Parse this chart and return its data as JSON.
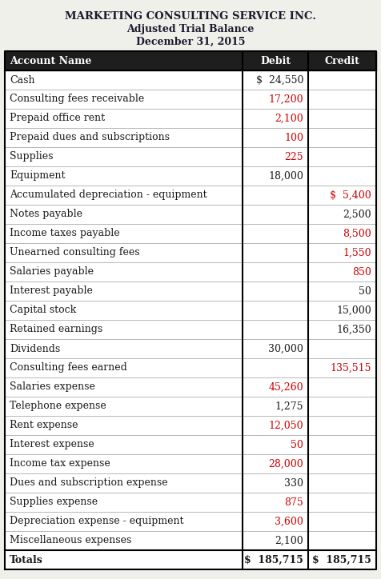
{
  "title1": "MARKETING CONSULTING SERVICE INC.",
  "title2": "Adjusted Trial Balance",
  "title3": "December 31, 2015",
  "col_headers": [
    "Account Name",
    "Debit",
    "Credit"
  ],
  "rows": [
    {
      "name": "Cash",
      "debit": "$  24,550",
      "credit": "",
      "debit_red": false,
      "credit_red": false
    },
    {
      "name": "Consulting fees receivable",
      "debit": "17,200",
      "credit": "",
      "debit_red": true,
      "credit_red": false
    },
    {
      "name": "Prepaid office rent",
      "debit": "2,100",
      "credit": "",
      "debit_red": true,
      "credit_red": false
    },
    {
      "name": "Prepaid dues and subscriptions",
      "debit": "100",
      "credit": "",
      "debit_red": true,
      "credit_red": false
    },
    {
      "name": "Supplies",
      "debit": "225",
      "credit": "",
      "debit_red": true,
      "credit_red": false
    },
    {
      "name": "Equipment",
      "debit": "18,000",
      "credit": "",
      "debit_red": false,
      "credit_red": false
    },
    {
      "name": "Accumulated depreciation - equipment",
      "debit": "",
      "credit": "$  5,400",
      "debit_red": false,
      "credit_red": true
    },
    {
      "name": "Notes payable",
      "debit": "",
      "credit": "2,500",
      "debit_red": false,
      "credit_red": false
    },
    {
      "name": "Income taxes payable",
      "debit": "",
      "credit": "8,500",
      "debit_red": false,
      "credit_red": true
    },
    {
      "name": "Unearned consulting fees",
      "debit": "",
      "credit": "1,550",
      "debit_red": false,
      "credit_red": true
    },
    {
      "name": "Salaries payable",
      "debit": "",
      "credit": "850",
      "debit_red": false,
      "credit_red": true
    },
    {
      "name": "Interest payable",
      "debit": "",
      "credit": "50",
      "debit_red": false,
      "credit_red": false
    },
    {
      "name": "Capital stock",
      "debit": "",
      "credit": "15,000",
      "debit_red": false,
      "credit_red": false
    },
    {
      "name": "Retained earnings",
      "debit": "",
      "credit": "16,350",
      "debit_red": false,
      "credit_red": false
    },
    {
      "name": "Dividends",
      "debit": "30,000",
      "credit": "",
      "debit_red": false,
      "credit_red": false
    },
    {
      "name": "Consulting fees earned",
      "debit": "",
      "credit": "135,515",
      "debit_red": false,
      "credit_red": true
    },
    {
      "name": "Salaries expense",
      "debit": "45,260",
      "credit": "",
      "debit_red": true,
      "credit_red": false
    },
    {
      "name": "Telephone expense",
      "debit": "1,275",
      "credit": "",
      "debit_red": false,
      "credit_red": false
    },
    {
      "name": "Rent expense",
      "debit": "12,050",
      "credit": "",
      "debit_red": true,
      "credit_red": false
    },
    {
      "name": "Interest expense",
      "debit": "50",
      "credit": "",
      "debit_red": true,
      "credit_red": false
    },
    {
      "name": "Income tax expense",
      "debit": "28,000",
      "credit": "",
      "debit_red": true,
      "credit_red": false
    },
    {
      "name": "Dues and subscription expense",
      "debit": "330",
      "credit": "",
      "debit_red": false,
      "credit_red": false
    },
    {
      "name": "Supplies expense",
      "debit": "875",
      "credit": "",
      "debit_red": true,
      "credit_red": false
    },
    {
      "name": "Depreciation expense - equipment",
      "debit": "3,600",
      "credit": "",
      "debit_red": true,
      "credit_red": false
    },
    {
      "name": "Miscellaneous expenses",
      "debit": "2,100",
      "credit": "",
      "debit_red": false,
      "credit_red": false
    }
  ],
  "totals_row": {
    "name": "Totals",
    "debit": "$  185,715",
    "credit": "$  185,715"
  },
  "bg_color": "#f0f0ea",
  "header_bg": "#1e1e1e",
  "border_color": "#000000",
  "text_black": "#1a1a1a",
  "text_red": "#cc0000",
  "title_color": "#1a1a2e",
  "font_size": 9.0,
  "title_font_size": 9.5
}
